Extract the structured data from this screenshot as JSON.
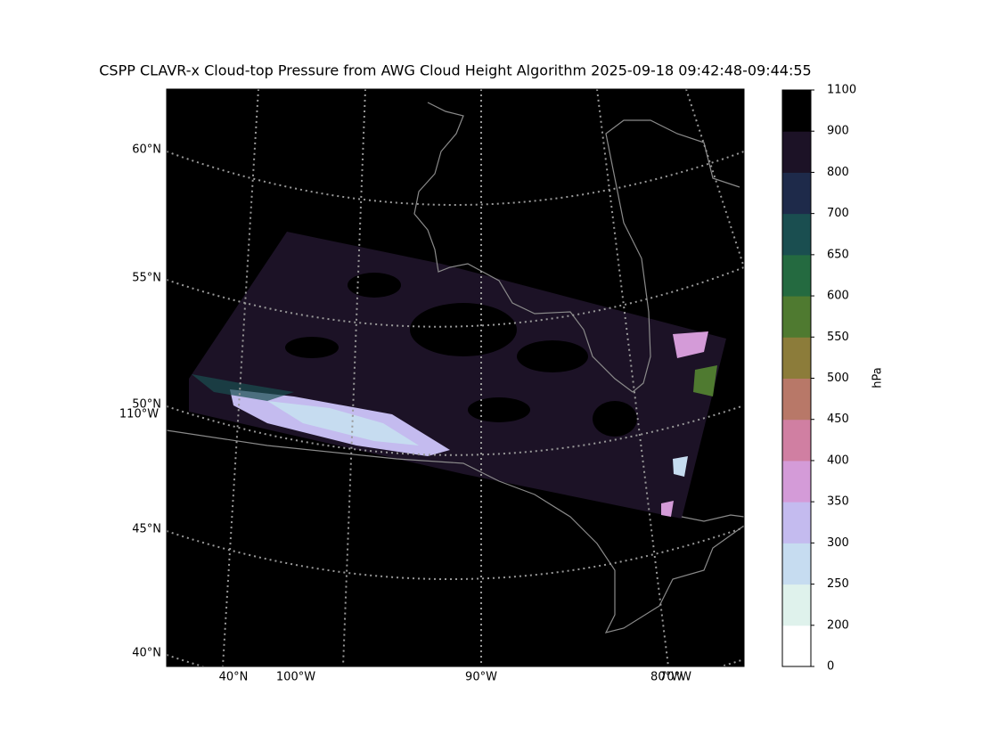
{
  "title": "CSPP CLAVR-x Cloud-top Pressure from AWG Cloud Height Algorithm 2025-09-18 09:42:48-09:44:55",
  "map": {
    "lat_labels": [
      "60°N",
      "55°N",
      "50°N",
      "45°N",
      "40°N"
    ],
    "lon_labels": [
      "110°W",
      "40°N",
      "100°W",
      "90°W",
      "80°W",
      "70°W"
    ]
  },
  "colorbar": {
    "label": "hPa",
    "ticks": [
      0,
      200,
      250,
      300,
      350,
      400,
      450,
      500,
      550,
      600,
      650,
      700,
      800,
      900,
      1100
    ],
    "colors": [
      "#ffffff",
      "#dff2ec",
      "#c6dcf0",
      "#c4bbef",
      "#d49bd8",
      "#d07fa2",
      "#b87868",
      "#8c7c3a",
      "#4f7a30",
      "#246a40",
      "#1a4e50",
      "#1e2a4a",
      "#1c1226",
      "#000000"
    ]
  }
}
